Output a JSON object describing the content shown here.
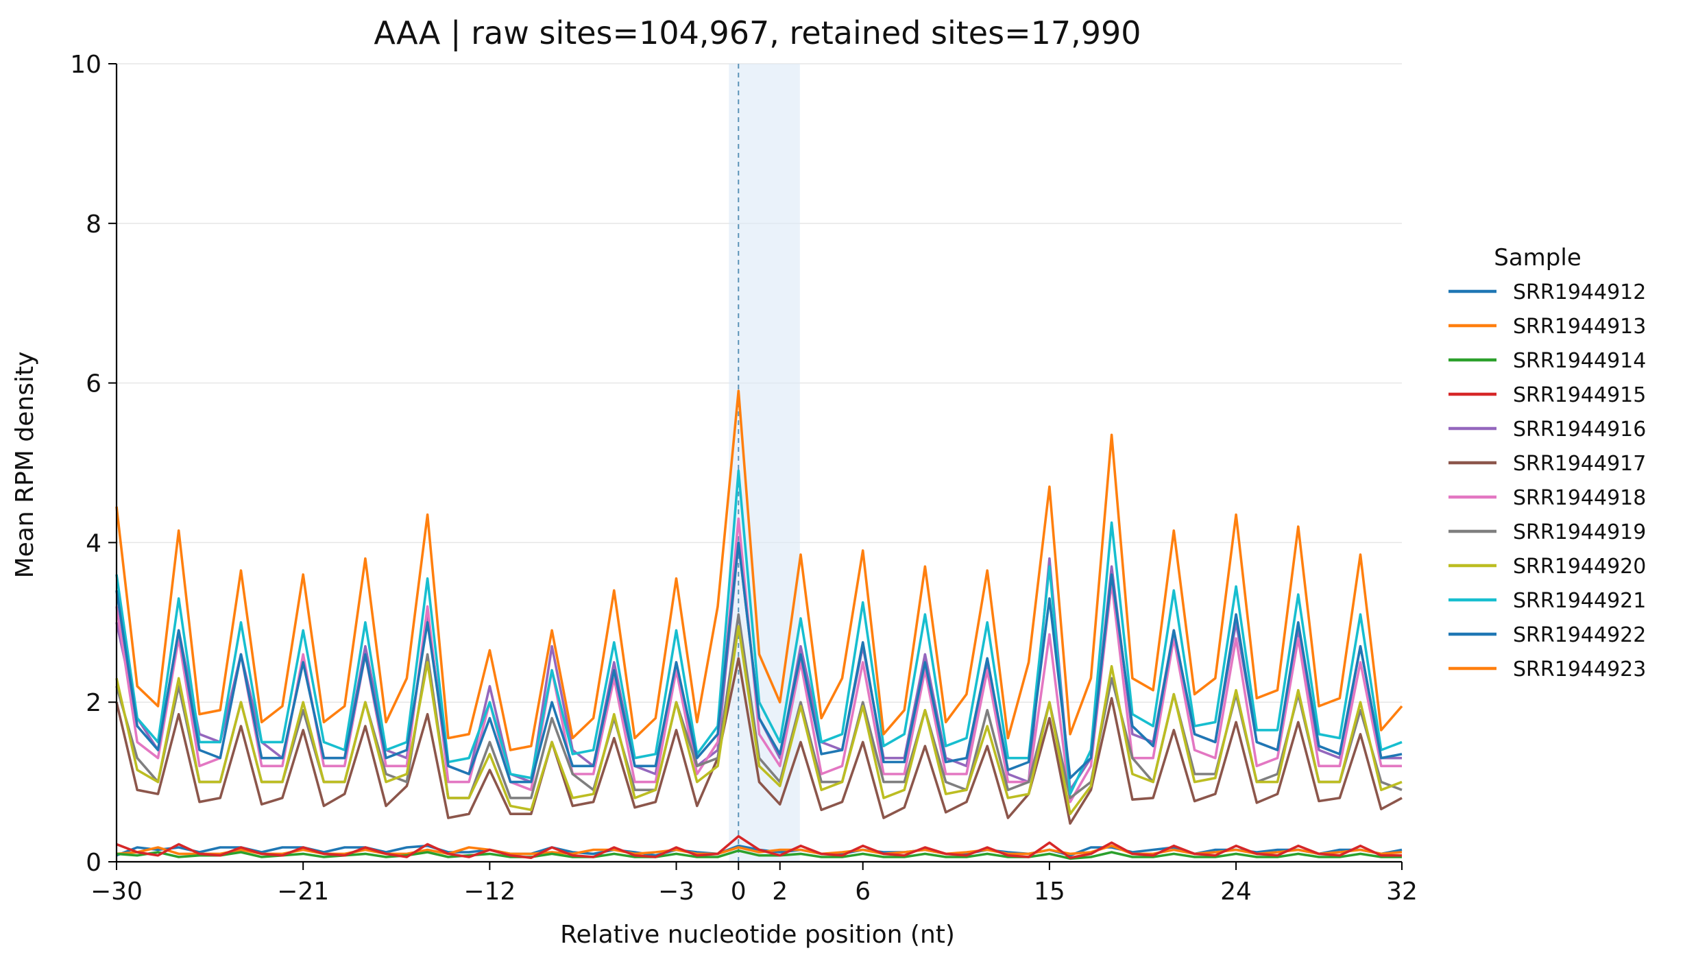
{
  "chart_data": {
    "type": "line",
    "title": "AAA | raw sites=104,967, retained sites=17,990",
    "xlabel": "Relative nucleotide position (nt)",
    "ylabel": "Mean RPM density",
    "xlim": [
      -30,
      32
    ],
    "ylim": [
      0,
      10
    ],
    "x_ticks": [
      -30,
      -21,
      -12,
      -3,
      0,
      2,
      6,
      15,
      24,
      32
    ],
    "x_tick_labels": [
      "−30",
      "−21",
      "−12",
      "−3",
      "0",
      "2",
      "6",
      "15",
      "24",
      "32"
    ],
    "y_ticks": [
      0,
      2,
      4,
      6,
      8,
      10
    ],
    "y_tick_labels": [
      "0",
      "2",
      "4",
      "6",
      "8",
      "10"
    ],
    "grid": "horizontal",
    "highlight_span": [
      0,
      2.5
    ],
    "reference_line_x": 0,
    "legend": {
      "title": "Sample",
      "placement": "right"
    },
    "x": [
      -30,
      -29,
      -28,
      -27,
      -26,
      -25,
      -24,
      -23,
      -22,
      -21,
      -20,
      -19,
      -18,
      -17,
      -16,
      -15,
      -14,
      -13,
      -12,
      -11,
      -10,
      -9,
      -8,
      -7,
      -6,
      -5,
      -4,
      -3,
      -2,
      -1,
      0,
      1,
      2,
      3,
      4,
      5,
      6,
      7,
      8,
      9,
      10,
      11,
      12,
      13,
      14,
      15,
      16,
      17,
      18,
      19,
      20,
      21,
      22,
      23,
      24,
      25,
      26,
      27,
      28,
      29,
      30,
      31,
      32
    ],
    "series": [
      {
        "name": "SRR1944912",
        "color": "#1f77b4",
        "values": [
          0.08,
          0.18,
          0.15,
          0.18,
          0.12,
          0.18,
          0.18,
          0.12,
          0.18,
          0.18,
          0.12,
          0.18,
          0.18,
          0.12,
          0.18,
          0.2,
          0.12,
          0.12,
          0.15,
          0.1,
          0.1,
          0.18,
          0.12,
          0.1,
          0.15,
          0.12,
          0.08,
          0.15,
          0.12,
          0.1,
          0.2,
          0.15,
          0.12,
          0.15,
          0.1,
          0.1,
          0.15,
          0.12,
          0.12,
          0.15,
          0.1,
          0.1,
          0.15,
          0.12,
          0.1,
          0.15,
          0.08,
          0.18,
          0.18,
          0.12,
          0.15,
          0.18,
          0.1,
          0.15,
          0.15,
          0.12,
          0.15,
          0.15,
          0.1,
          0.15,
          0.15,
          0.1,
          0.15
        ]
      },
      {
        "name": "SRR1944913",
        "color": "#ff7f0e",
        "values": [
          0.1,
          0.12,
          0.18,
          0.1,
          0.1,
          0.1,
          0.15,
          0.1,
          0.1,
          0.15,
          0.1,
          0.1,
          0.15,
          0.1,
          0.1,
          0.15,
          0.1,
          0.18,
          0.15,
          0.1,
          0.1,
          0.12,
          0.1,
          0.15,
          0.15,
          0.1,
          0.12,
          0.15,
          0.1,
          0.1,
          0.18,
          0.12,
          0.15,
          0.15,
          0.1,
          0.12,
          0.15,
          0.1,
          0.12,
          0.15,
          0.1,
          0.12,
          0.15,
          0.1,
          0.1,
          0.15,
          0.1,
          0.12,
          0.2,
          0.1,
          0.1,
          0.15,
          0.1,
          0.12,
          0.15,
          0.1,
          0.12,
          0.15,
          0.1,
          0.12,
          0.15,
          0.1,
          0.12
        ]
      },
      {
        "name": "SRR1944914",
        "color": "#2ca02c",
        "values": [
          0.1,
          0.08,
          0.12,
          0.06,
          0.08,
          0.08,
          0.12,
          0.06,
          0.08,
          0.1,
          0.06,
          0.08,
          0.1,
          0.06,
          0.08,
          0.12,
          0.06,
          0.08,
          0.1,
          0.06,
          0.06,
          0.1,
          0.06,
          0.06,
          0.1,
          0.06,
          0.06,
          0.1,
          0.06,
          0.06,
          0.14,
          0.08,
          0.08,
          0.1,
          0.06,
          0.06,
          0.1,
          0.06,
          0.06,
          0.1,
          0.06,
          0.06,
          0.1,
          0.06,
          0.06,
          0.1,
          0.04,
          0.06,
          0.12,
          0.06,
          0.06,
          0.1,
          0.06,
          0.06,
          0.1,
          0.06,
          0.06,
          0.1,
          0.06,
          0.06,
          0.1,
          0.06,
          0.06
        ]
      },
      {
        "name": "SRR1944915",
        "color": "#d62728",
        "values": [
          0.22,
          0.12,
          0.08,
          0.22,
          0.1,
          0.08,
          0.18,
          0.1,
          0.08,
          0.18,
          0.1,
          0.08,
          0.18,
          0.1,
          0.06,
          0.22,
          0.1,
          0.06,
          0.15,
          0.08,
          0.05,
          0.18,
          0.08,
          0.06,
          0.18,
          0.08,
          0.06,
          0.18,
          0.08,
          0.1,
          0.32,
          0.15,
          0.08,
          0.2,
          0.1,
          0.08,
          0.2,
          0.1,
          0.08,
          0.18,
          0.1,
          0.08,
          0.18,
          0.08,
          0.06,
          0.24,
          0.05,
          0.1,
          0.24,
          0.1,
          0.08,
          0.2,
          0.1,
          0.08,
          0.2,
          0.1,
          0.08,
          0.2,
          0.1,
          0.08,
          0.2,
          0.08,
          0.08
        ]
      },
      {
        "name": "SRR1944916",
        "color": "#9467bd",
        "values": [
          3.0,
          1.8,
          1.4,
          2.9,
          1.6,
          1.5,
          2.6,
          1.5,
          1.3,
          2.5,
          1.3,
          1.3,
          2.7,
          1.4,
          1.3,
          3.1,
          1.2,
          1.1,
          2.2,
          1.1,
          1.0,
          2.7,
          1.4,
          1.2,
          2.5,
          1.2,
          1.1,
          2.5,
          1.2,
          1.4,
          4.0,
          1.8,
          1.3,
          2.7,
          1.5,
          1.4,
          2.7,
          1.3,
          1.3,
          2.6,
          1.3,
          1.2,
          2.5,
          1.1,
          1.0,
          3.8,
          0.9,
          1.3,
          3.7,
          1.6,
          1.5,
          2.9,
          1.6,
          1.5,
          3.0,
          1.5,
          1.4,
          2.9,
          1.4,
          1.3,
          2.7,
          1.3,
          1.3
        ]
      },
      {
        "name": "SRR1944917",
        "color": "#8c564b",
        "values": [
          2.0,
          0.9,
          0.85,
          1.85,
          0.75,
          0.8,
          1.7,
          0.72,
          0.8,
          1.65,
          0.7,
          0.85,
          1.7,
          0.7,
          0.95,
          1.85,
          0.55,
          0.6,
          1.15,
          0.6,
          0.6,
          1.5,
          0.7,
          0.75,
          1.55,
          0.68,
          0.75,
          1.65,
          0.7,
          1.3,
          2.55,
          1.0,
          0.72,
          1.5,
          0.65,
          0.75,
          1.5,
          0.55,
          0.68,
          1.45,
          0.62,
          0.75,
          1.45,
          0.55,
          0.85,
          1.8,
          0.48,
          0.9,
          2.05,
          0.78,
          0.8,
          1.65,
          0.76,
          0.85,
          1.75,
          0.74,
          0.85,
          1.75,
          0.76,
          0.8,
          1.6,
          0.66,
          0.8
        ]
      },
      {
        "name": "SRR1944918",
        "color": "#e377c2",
        "values": [
          3.2,
          1.5,
          1.3,
          2.8,
          1.2,
          1.3,
          2.6,
          1.2,
          1.2,
          2.6,
          1.2,
          1.2,
          2.6,
          1.2,
          1.2,
          3.2,
          1.0,
          1.0,
          2.0,
          1.0,
          0.9,
          2.4,
          1.1,
          1.1,
          2.3,
          1.0,
          1.0,
          2.4,
          1.1,
          1.5,
          4.3,
          1.6,
          1.2,
          2.5,
          1.1,
          1.2,
          2.5,
          1.1,
          1.1,
          2.4,
          1.1,
          1.1,
          2.4,
          1.0,
          1.0,
          2.85,
          0.75,
          1.2,
          3.5,
          1.3,
          1.3,
          2.8,
          1.4,
          1.3,
          2.8,
          1.2,
          1.3,
          2.8,
          1.2,
          1.2,
          2.5,
          1.2,
          1.2
        ]
      },
      {
        "name": "SRR1944919",
        "color": "#7f7f7f",
        "values": [
          2.2,
          1.3,
          1.0,
          2.2,
          1.0,
          1.0,
          2.0,
          1.0,
          1.0,
          1.9,
          1.0,
          1.0,
          2.0,
          1.1,
          1.0,
          2.6,
          0.8,
          0.8,
          1.5,
          0.8,
          0.8,
          1.8,
          1.1,
          0.9,
          1.8,
          0.9,
          0.9,
          2.0,
          1.2,
          1.3,
          3.1,
          1.3,
          1.0,
          2.0,
          1.0,
          1.0,
          2.0,
          1.0,
          1.0,
          1.9,
          1.0,
          0.9,
          1.9,
          0.9,
          1.0,
          2.0,
          0.8,
          1.0,
          2.3,
          1.3,
          1.0,
          2.1,
          1.1,
          1.1,
          2.1,
          1.0,
          1.1,
          2.1,
          1.0,
          1.0,
          1.9,
          1.0,
          0.9
        ]
      },
      {
        "name": "SRR1944920",
        "color": "#bcbd22",
        "values": [
          2.3,
          1.15,
          1.0,
          2.3,
          1.0,
          1.0,
          2.0,
          1.0,
          1.0,
          2.0,
          1.0,
          1.0,
          2.0,
          1.0,
          1.1,
          2.5,
          0.8,
          0.8,
          1.35,
          0.7,
          0.65,
          1.5,
          0.8,
          0.85,
          1.85,
          0.8,
          0.9,
          2.0,
          1.0,
          1.2,
          2.95,
          1.2,
          0.95,
          1.95,
          0.9,
          1.0,
          1.95,
          0.8,
          0.9,
          1.9,
          0.85,
          0.9,
          1.7,
          0.8,
          0.85,
          2.0,
          0.6,
          0.95,
          2.45,
          1.1,
          1.0,
          2.1,
          1.0,
          1.05,
          2.15,
          1.0,
          1.0,
          2.15,
          1.0,
          1.0,
          2.0,
          0.9,
          1.0
        ]
      },
      {
        "name": "SRR1944921",
        "color": "#17becf",
        "values": [
          3.6,
          1.8,
          1.5,
          3.3,
          1.5,
          1.5,
          3.0,
          1.5,
          1.5,
          2.9,
          1.5,
          1.4,
          3.0,
          1.4,
          1.5,
          3.55,
          1.25,
          1.3,
          2.0,
          1.1,
          1.05,
          2.4,
          1.35,
          1.4,
          2.75,
          1.3,
          1.35,
          2.9,
          1.35,
          1.7,
          4.9,
          2.0,
          1.5,
          3.05,
          1.5,
          1.6,
          3.25,
          1.45,
          1.6,
          3.1,
          1.45,
          1.55,
          3.0,
          1.3,
          1.3,
          3.7,
          0.85,
          1.4,
          4.25,
          1.85,
          1.7,
          3.4,
          1.7,
          1.75,
          3.45,
          1.65,
          1.65,
          3.35,
          1.6,
          1.55,
          3.1,
          1.4,
          1.5
        ]
      },
      {
        "name": "SRR1944922",
        "color": "#1f77b4",
        "values": [
          3.4,
          1.7,
          1.4,
          2.9,
          1.4,
          1.3,
          2.6,
          1.3,
          1.3,
          2.5,
          1.3,
          1.3,
          2.6,
          1.3,
          1.4,
          3.0,
          1.2,
          1.1,
          1.8,
          1.0,
          1.0,
          2.0,
          1.2,
          1.2,
          2.4,
          1.2,
          1.2,
          2.5,
          1.3,
          1.6,
          4.0,
          1.8,
          1.35,
          2.6,
          1.35,
          1.4,
          2.75,
          1.25,
          1.25,
          2.5,
          1.25,
          1.3,
          2.55,
          1.15,
          1.25,
          3.3,
          1.05,
          1.3,
          3.6,
          1.7,
          1.45,
          2.9,
          1.6,
          1.5,
          3.1,
          1.5,
          1.4,
          3.0,
          1.45,
          1.35,
          2.7,
          1.3,
          1.35
        ]
      },
      {
        "name": "SRR1944923",
        "color": "#ff7f0e",
        "values": [
          4.45,
          2.2,
          1.95,
          4.15,
          1.85,
          1.9,
          3.65,
          1.75,
          1.95,
          3.6,
          1.75,
          1.95,
          3.8,
          1.75,
          2.3,
          4.35,
          1.55,
          1.6,
          2.65,
          1.4,
          1.45,
          2.9,
          1.55,
          1.8,
          3.4,
          1.55,
          1.8,
          3.55,
          1.75,
          3.2,
          5.9,
          2.6,
          2.0,
          3.85,
          1.8,
          2.3,
          3.9,
          1.6,
          1.9,
          3.7,
          1.75,
          2.1,
          3.65,
          1.55,
          2.5,
          4.7,
          1.6,
          2.3,
          5.35,
          2.3,
          2.15,
          4.15,
          2.1,
          2.3,
          4.35,
          2.05,
          2.15,
          4.2,
          1.95,
          2.05,
          3.85,
          1.65,
          1.95
        ]
      }
    ]
  }
}
